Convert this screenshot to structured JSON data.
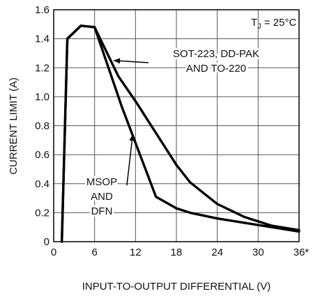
{
  "chart_data": {
    "type": "line",
    "xlabel": "INPUT-TO-OUTPUT DIFFERENTIAL (V)",
    "ylabel": "CURRENT LIMIT (A)",
    "xlim": [
      0,
      36
    ],
    "ylim": [
      0,
      1.6
    ],
    "xticks": [
      "0",
      "6",
      "12",
      "18",
      "24",
      "30",
      "36*"
    ],
    "yticks": [
      "0",
      "0.2",
      "0.4",
      "0.6",
      "0.8",
      "1.0",
      "1.2",
      "1.4",
      "1.6"
    ],
    "grid": true,
    "condition": {
      "main": "T",
      "sub": "J",
      "rest": " = 25°C"
    },
    "series": [
      {
        "name": "SOT-223, DD-PAK AND TO-220",
        "label_lines": [
          "SOT-223, DD-PAK",
          "AND TO-220"
        ],
        "x": [
          1.2,
          2,
          4,
          6,
          9.5,
          12,
          15,
          18,
          20,
          24,
          28,
          32,
          36
        ],
        "y": [
          0,
          1.4,
          1.49,
          1.48,
          1.14,
          0.97,
          0.75,
          0.53,
          0.41,
          0.26,
          0.17,
          0.11,
          0.08
        ]
      },
      {
        "name": "MSOP AND DFN",
        "label_lines": [
          "MSOP",
          "AND",
          "DFN"
        ],
        "x": [
          1.2,
          2,
          4,
          6,
          10,
          15,
          18,
          20,
          24,
          28,
          32,
          36
        ],
        "y": [
          0,
          1.4,
          1.49,
          1.48,
          0.93,
          0.31,
          0.23,
          0.2,
          0.16,
          0.13,
          0.1,
          0.07
        ]
      }
    ]
  }
}
